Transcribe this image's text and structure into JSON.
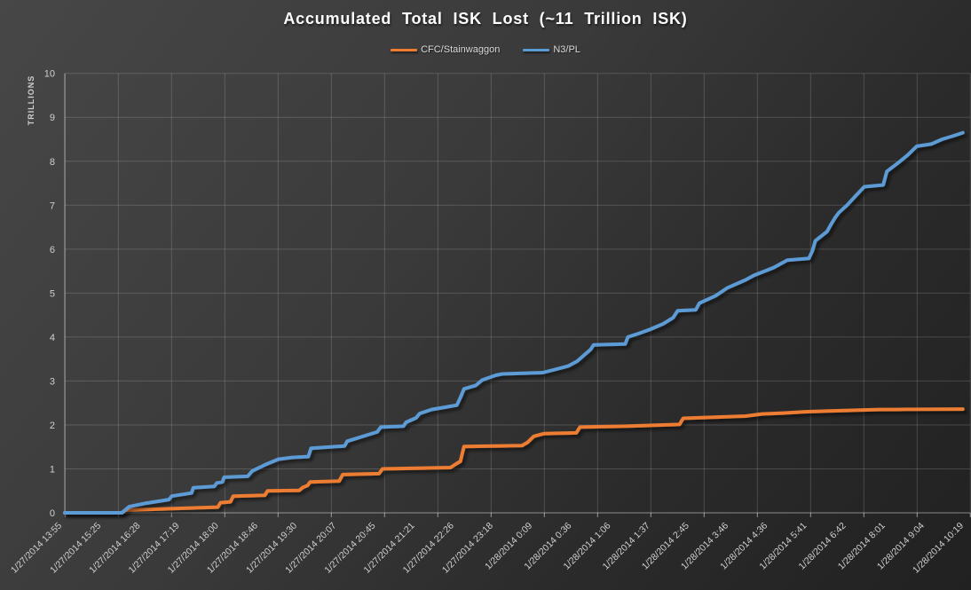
{
  "title": "Accumulated Total ISK Lost (~11 Trillion ISK)",
  "legend": [
    {
      "label": "CFC/Stainwaggon",
      "color": "#ED7D31"
    },
    {
      "label": "N3/PL",
      "color": "#5B9BD5"
    }
  ],
  "colors": {
    "background_top": "#474747",
    "background_bottom": "#212121",
    "gridline": "rgba(255,255,255,0.16)",
    "axis_line": "rgba(255,255,255,0.38)",
    "tick": "#9a9a9a",
    "axis_text": "#d0d0d0",
    "title_text": "#ffffff",
    "series_cfc": "#ED7D31",
    "series_n3pl": "#5B9BD5"
  },
  "chart_data": {
    "type": "line",
    "title": "Accumulated Total ISK Lost (~11 Trillion ISK)",
    "subtitle": "",
    "xlabel": "",
    "ylabel": "TRILLIONS",
    "ylim": [
      0,
      10
    ],
    "y_ticks": [
      0,
      1,
      2,
      3,
      4,
      5,
      6,
      7,
      8,
      9,
      10
    ],
    "grid": true,
    "legend_position": "top-center",
    "x_unit": "percent-of-axis-width",
    "x_tick_labels": [
      "1/27/2014 13:55",
      "1/27/2014 15:25",
      "1/27/2014 16:28",
      "1/27/2014 17:19",
      "1/27/2014 18:00",
      "1/27/2014 18:46",
      "1/27/2014 19:30",
      "1/27/2014 20:07",
      "1/27/2014 20:45",
      "1/27/2014 21:21",
      "1/27/2014 22:26",
      "1/27/2014 23:18",
      "1/28/2014 0:09",
      "1/28/2014 0:36",
      "1/28/2014 1:06",
      "1/28/2014 1:37",
      "1/28/2014 2:45",
      "1/28/2014 3:46",
      "1/28/2014 4:36",
      "1/28/2014 5:41",
      "1/28/2014 6:42",
      "1/28/2014 8:01",
      "1/28/2014 9:04",
      "1/28/2014 10:19"
    ],
    "series": [
      {
        "name": "CFC/Stainwaggon",
        "color": "#ED7D31",
        "final_value_trillions": 2.36,
        "points": [
          [
            0,
            0
          ],
          [
            6.3,
            0
          ],
          [
            6.7,
            0.06
          ],
          [
            16.9,
            0.13
          ],
          [
            17.2,
            0.23
          ],
          [
            18.3,
            0.25
          ],
          [
            18.6,
            0.38
          ],
          [
            22.1,
            0.4
          ],
          [
            22.4,
            0.5
          ],
          [
            25.9,
            0.51
          ],
          [
            26.3,
            0.58
          ],
          [
            26.8,
            0.62
          ],
          [
            27.1,
            0.7
          ],
          [
            30.3,
            0.72
          ],
          [
            30.7,
            0.87
          ],
          [
            34.7,
            0.89
          ],
          [
            35.1,
            1.0
          ],
          [
            42.6,
            1.03
          ],
          [
            43.2,
            1.11
          ],
          [
            43.7,
            1.17
          ],
          [
            44.1,
            1.51
          ],
          [
            50.5,
            1.53
          ],
          [
            51.1,
            1.6
          ],
          [
            51.8,
            1.74
          ],
          [
            52.9,
            1.8
          ],
          [
            56.5,
            1.82
          ],
          [
            56.9,
            1.95
          ],
          [
            62.0,
            1.97
          ],
          [
            67.9,
            2.01
          ],
          [
            68.3,
            2.15
          ],
          [
            75.2,
            2.2
          ],
          [
            77.0,
            2.25
          ],
          [
            79.3,
            2.27
          ],
          [
            81.8,
            2.3
          ],
          [
            84.8,
            2.32
          ],
          [
            89.9,
            2.35
          ],
          [
            99.2,
            2.36
          ]
        ]
      },
      {
        "name": "N3/PL",
        "color": "#5B9BD5",
        "final_value_trillions": 8.65,
        "points": [
          [
            0,
            0
          ],
          [
            6.3,
            0
          ],
          [
            7.1,
            0.14
          ],
          [
            9.0,
            0.22
          ],
          [
            11.5,
            0.3
          ],
          [
            11.8,
            0.38
          ],
          [
            14.0,
            0.45
          ],
          [
            14.2,
            0.57
          ],
          [
            16.5,
            0.6
          ],
          [
            16.8,
            0.68
          ],
          [
            17.4,
            0.7
          ],
          [
            17.6,
            0.81
          ],
          [
            20.2,
            0.83
          ],
          [
            20.7,
            0.95
          ],
          [
            22.2,
            1.1
          ],
          [
            23.6,
            1.22
          ],
          [
            25.1,
            1.26
          ],
          [
            26.9,
            1.28
          ],
          [
            27.2,
            1.47
          ],
          [
            30.9,
            1.52
          ],
          [
            31.2,
            1.63
          ],
          [
            34.5,
            1.84
          ],
          [
            34.9,
            1.95
          ],
          [
            37.4,
            1.97
          ],
          [
            37.7,
            2.06
          ],
          [
            38.8,
            2.16
          ],
          [
            39.2,
            2.26
          ],
          [
            40.5,
            2.35
          ],
          [
            43.3,
            2.45
          ],
          [
            43.7,
            2.62
          ],
          [
            44.1,
            2.82
          ],
          [
            45.4,
            2.9
          ],
          [
            46.1,
            3.02
          ],
          [
            47.6,
            3.13
          ],
          [
            48.3,
            3.16
          ],
          [
            52.8,
            3.19
          ],
          [
            55.6,
            3.34
          ],
          [
            56.6,
            3.45
          ],
          [
            57.2,
            3.56
          ],
          [
            58.1,
            3.72
          ],
          [
            58.4,
            3.82
          ],
          [
            61.9,
            3.84
          ],
          [
            62.2,
            4.0
          ],
          [
            63.4,
            4.08
          ],
          [
            64.6,
            4.17
          ],
          [
            66.1,
            4.3
          ],
          [
            67.2,
            4.44
          ],
          [
            67.7,
            4.6
          ],
          [
            69.7,
            4.62
          ],
          [
            70.1,
            4.77
          ],
          [
            71.9,
            4.94
          ],
          [
            73.2,
            5.12
          ],
          [
            75.2,
            5.3
          ],
          [
            76.1,
            5.4
          ],
          [
            78.3,
            5.58
          ],
          [
            79.8,
            5.75
          ],
          [
            82.2,
            5.79
          ],
          [
            82.6,
            5.97
          ],
          [
            82.9,
            6.19
          ],
          [
            84.2,
            6.4
          ],
          [
            84.6,
            6.55
          ],
          [
            85.1,
            6.72
          ],
          [
            85.5,
            6.83
          ],
          [
            86.4,
            7.0
          ],
          [
            87.3,
            7.2
          ],
          [
            88.3,
            7.42
          ],
          [
            90.4,
            7.46
          ],
          [
            90.8,
            7.77
          ],
          [
            92.1,
            7.97
          ],
          [
            93.1,
            8.14
          ],
          [
            94.1,
            8.34
          ],
          [
            95.7,
            8.39
          ],
          [
            96.9,
            8.5
          ],
          [
            98.2,
            8.58
          ],
          [
            99.2,
            8.65
          ]
        ]
      }
    ]
  }
}
